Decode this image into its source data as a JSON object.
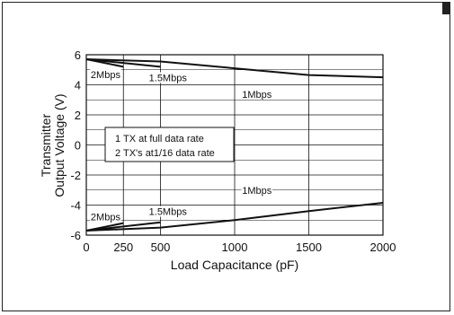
{
  "chart_data": {
    "type": "line",
    "xlabel": "Load Capacitance (pF)",
    "ylabel_line1": "Transmitter",
    "ylabel_line2": "Output Voltage (V)",
    "xlim": [
      0,
      2000
    ],
    "ylim": [
      -6,
      6
    ],
    "x_ticks": [
      0,
      250,
      500,
      1000,
      1500,
      2000
    ],
    "y_ticks": [
      6,
      4,
      2,
      0,
      -2,
      -4,
      -6
    ],
    "grid": true,
    "legend_box": {
      "line1": "1 TX at full data rate",
      "line2": "2 TX's at1/16 data rate"
    },
    "series": [
      {
        "name": "2Mbps",
        "group": "positive",
        "x": [
          0,
          250
        ],
        "y": [
          5.7,
          5.2
        ]
      },
      {
        "name": "1.5Mbps",
        "group": "positive",
        "x": [
          0,
          500
        ],
        "y": [
          5.7,
          5.2
        ]
      },
      {
        "name": "1Mbps",
        "group": "positive",
        "x": [
          0,
          500,
          1000,
          1500,
          2000
        ],
        "y": [
          5.7,
          5.55,
          5.1,
          4.65,
          4.5
        ]
      },
      {
        "name": "2Mbps",
        "group": "negative",
        "x": [
          0,
          250
        ],
        "y": [
          -5.7,
          -5.2
        ]
      },
      {
        "name": "1.5Mbps",
        "group": "negative",
        "x": [
          0,
          500
        ],
        "y": [
          -5.7,
          -5.15
        ]
      },
      {
        "name": "1Mbps",
        "group": "negative",
        "x": [
          0,
          500,
          1000,
          1500,
          2000
        ],
        "y": [
          -5.7,
          -5.5,
          -5.0,
          -4.4,
          -3.85
        ]
      }
    ],
    "series_labels": [
      {
        "text": "2Mbps",
        "x": 130,
        "y": 4.5
      },
      {
        "text": "1.5Mbps",
        "x": 550,
        "y": 4.3
      },
      {
        "text": "1Mbps",
        "x": 1150,
        "y": 3.2
      },
      {
        "text": "1Mbps",
        "x": 1150,
        "y": -3.2
      },
      {
        "text": "1.5Mbps",
        "x": 550,
        "y": -4.6
      },
      {
        "text": "2Mbps",
        "x": 130,
        "y": -4.95
      }
    ]
  }
}
